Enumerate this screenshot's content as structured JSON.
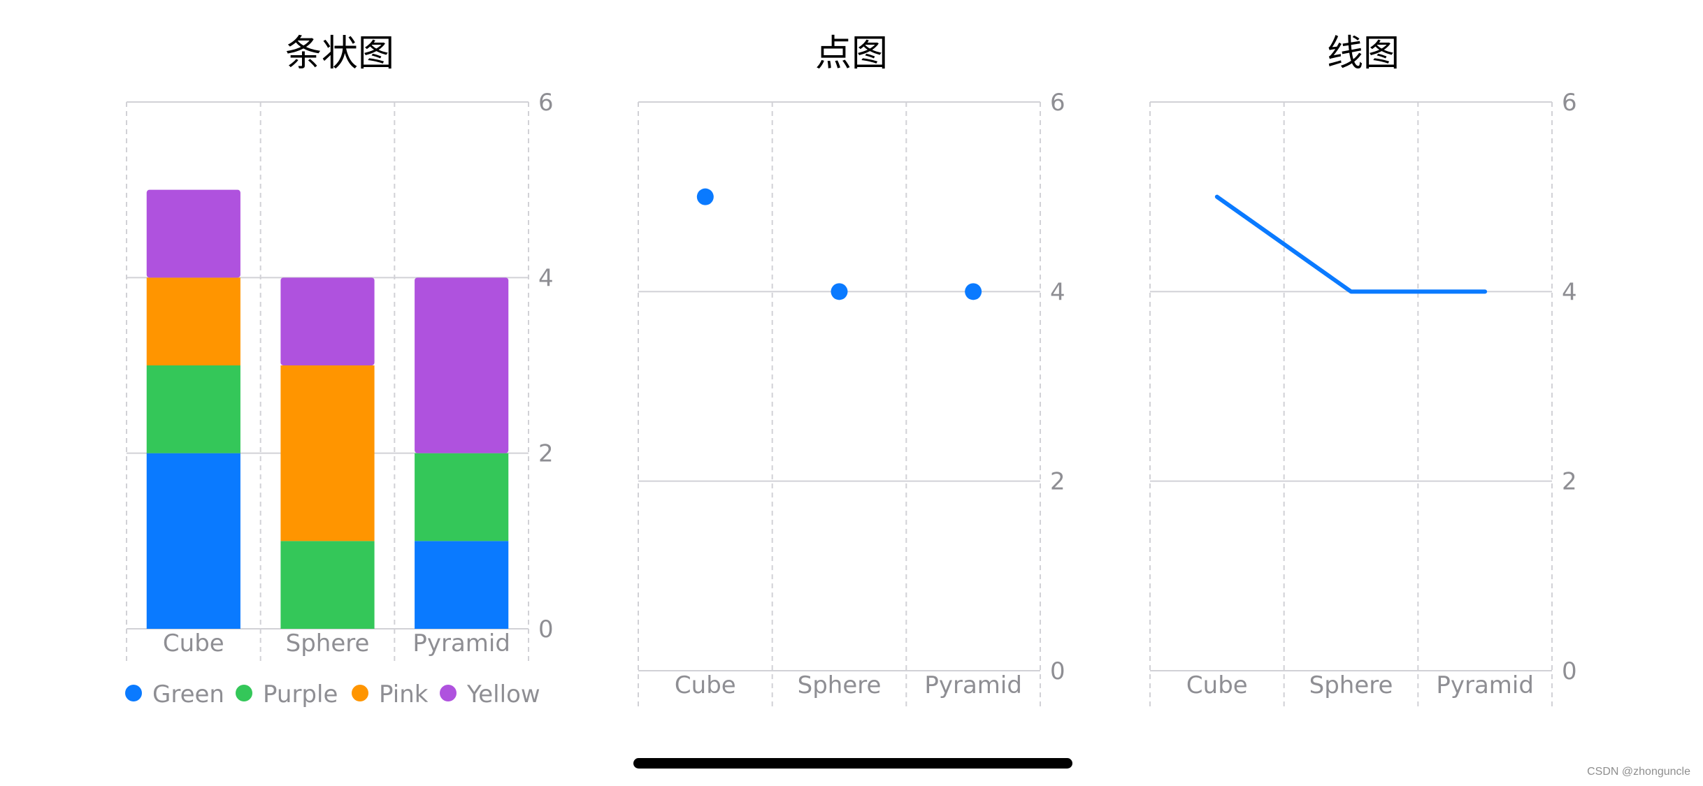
{
  "colors": {
    "blue": "#0A7AFF",
    "green": "#34C759",
    "orange": "#FF9500",
    "purple": "#AF52DE",
    "grid": "#D1D1D6",
    "axis_text": "#8E8E93"
  },
  "watermark": "CSDN @zhonguncle",
  "chart_data": [
    {
      "type": "bar",
      "stacked": true,
      "title": "条状图",
      "categories": [
        "Cube",
        "Sphere",
        "Pyramid"
      ],
      "series": [
        {
          "name": "Green",
          "color": "#0A7AFF",
          "values": [
            2,
            0,
            1
          ]
        },
        {
          "name": "Purple",
          "color": "#34C759",
          "values": [
            1,
            1,
            1
          ]
        },
        {
          "name": "Pink",
          "color": "#FF9500",
          "values": [
            1,
            2,
            0
          ]
        },
        {
          "name": "Yellow",
          "color": "#AF52DE",
          "values": [
            1,
            1,
            2
          ]
        }
      ],
      "y_ticks": [
        0,
        2,
        4,
        6
      ],
      "ylim": [
        0,
        6
      ],
      "grid": true,
      "legend": "bottom"
    },
    {
      "type": "scatter",
      "title": "点图",
      "categories": [
        "Cube",
        "Sphere",
        "Pyramid"
      ],
      "series": [
        {
          "color": "#0A7AFF",
          "values": [
            5,
            4,
            4
          ]
        }
      ],
      "y_ticks": [
        0,
        2,
        4,
        6
      ],
      "ylim": [
        0,
        6
      ],
      "grid": true
    },
    {
      "type": "line",
      "title": "线图",
      "categories": [
        "Cube",
        "Sphere",
        "Pyramid"
      ],
      "series": [
        {
          "color": "#0A7AFF",
          "values": [
            5,
            4,
            4
          ]
        }
      ],
      "y_ticks": [
        0,
        2,
        4,
        6
      ],
      "ylim": [
        0,
        6
      ],
      "grid": true
    }
  ]
}
